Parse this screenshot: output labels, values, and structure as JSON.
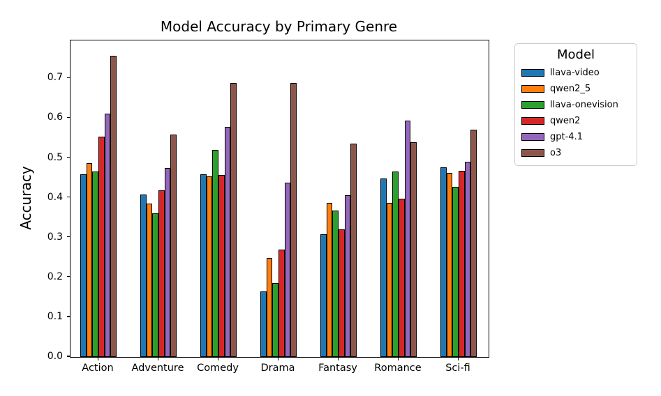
{
  "title": "Model Accuracy by Primary Genre",
  "ylabel": "Accuracy",
  "legend": {
    "title": "Model"
  },
  "chart_data": {
    "type": "bar",
    "title": "Model Accuracy by Primary Genre",
    "xlabel": "",
    "ylabel": "Accuracy",
    "categories": [
      "Action",
      "Adventure",
      "Comedy",
      "Drama",
      "Fantasy",
      "Romance",
      "Sci-fi"
    ],
    "series": [
      {
        "name": "llava-video",
        "color": "#1f77b4",
        "values": [
          0.458,
          0.408,
          0.459,
          0.165,
          0.308,
          0.449,
          0.477
        ]
      },
      {
        "name": "qwen2_5",
        "color": "#ff7f0e",
        "values": [
          0.487,
          0.386,
          0.454,
          0.248,
          0.387,
          0.387,
          0.463
        ]
      },
      {
        "name": "llava-onevision",
        "color": "#2ca02c",
        "values": [
          0.465,
          0.361,
          0.52,
          0.185,
          0.367,
          0.466,
          0.427
        ]
      },
      {
        "name": "qwen2",
        "color": "#d62728",
        "values": [
          0.554,
          0.419,
          0.457,
          0.27,
          0.321,
          0.398,
          0.468
        ]
      },
      {
        "name": "gpt-4.1",
        "color": "#9467bd",
        "values": [
          0.611,
          0.475,
          0.578,
          0.438,
          0.407,
          0.593,
          0.49
        ]
      },
      {
        "name": "o3",
        "color": "#8c564b",
        "values": [
          0.757,
          0.559,
          0.688,
          0.689,
          0.535,
          0.539,
          0.571
        ]
      }
    ],
    "ylim": [
      0,
      0.795
    ],
    "yticks": [
      0.0,
      0.1,
      0.2,
      0.3,
      0.4,
      0.5,
      0.6,
      0.7
    ],
    "grid": false,
    "legend_title": "Model",
    "legend_position": "outside upper right",
    "bar_edge_color": "#000000"
  }
}
